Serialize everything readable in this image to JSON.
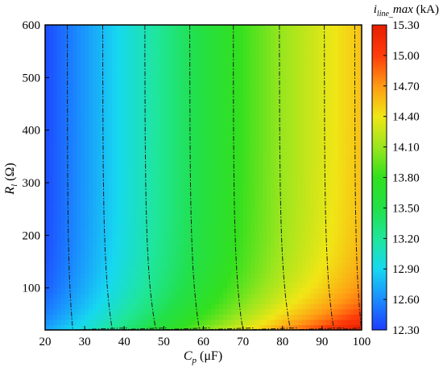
{
  "chart_data": {
    "type": "heatmap",
    "title": "",
    "xlabel": {
      "main": "C",
      "sub": "p",
      "unit": " (μF)"
    },
    "ylabel": {
      "main": "R",
      "sub": "l",
      "unit": " (Ω)"
    },
    "xlim": [
      20,
      100
    ],
    "ylim": [
      20,
      600
    ],
    "x_ticks": [
      "20",
      "30",
      "40",
      "50",
      "60",
      "70",
      "80",
      "90",
      "100"
    ],
    "y_ticks": [
      "100",
      "200",
      "300",
      "400",
      "500",
      "600"
    ],
    "colorbar": {
      "title": {
        "main": "i",
        "sub": "line_",
        "tail": "max",
        "unit": " (kA)"
      },
      "range": [
        12.3,
        15.3
      ],
      "ticks": [
        "12.30",
        "12.60",
        "12.90",
        "13.20",
        "13.50",
        "13.80",
        "14.10",
        "14.40",
        "14.70",
        "15.00",
        "15.30"
      ],
      "colors": [
        "#1e3cff",
        "#1a8cff",
        "#17d8f0",
        "#1fe69a",
        "#22e048",
        "#32e01e",
        "#9ae61e",
        "#f0e616",
        "#ff9a14",
        "#ff3c0a",
        "#e61e00"
      ]
    },
    "surface": {
      "description_of_shape": "value increases mainly with Cp; at low Rl contours bend toward higher Cp and values rise",
      "value_at_Rl600": [
        [
          20,
          12.35
        ],
        [
          40,
          12.95
        ],
        [
          60,
          13.55
        ],
        [
          80,
          14.1
        ],
        [
          100,
          14.55
        ]
      ],
      "peak": {
        "x": 100,
        "y": 25,
        "value": 15.1
      }
    },
    "contour_lines": [
      {
        "label": "12.6",
        "x_at_top": 27,
        "x_at_bottom": 23
      },
      {
        "label": "12.9",
        "x_at_top": 37,
        "x_at_bottom": 30
      },
      {
        "label": "13.2",
        "x_at_top": 48,
        "x_at_bottom": 40
      },
      {
        "label": "13.5",
        "x_at_top": 59,
        "x_at_bottom": 52
      },
      {
        "label": "13.8",
        "x_at_top": 70,
        "x_at_bottom": 63
      },
      {
        "label": "14.1",
        "x_at_top": 82,
        "x_at_bottom": 74
      },
      {
        "label": "14.4",
        "x_at_top": 93,
        "x_at_bottom": 86
      },
      {
        "label": "14.7",
        "x_at_top": 100,
        "x_at_bottom": 95
      }
    ]
  }
}
